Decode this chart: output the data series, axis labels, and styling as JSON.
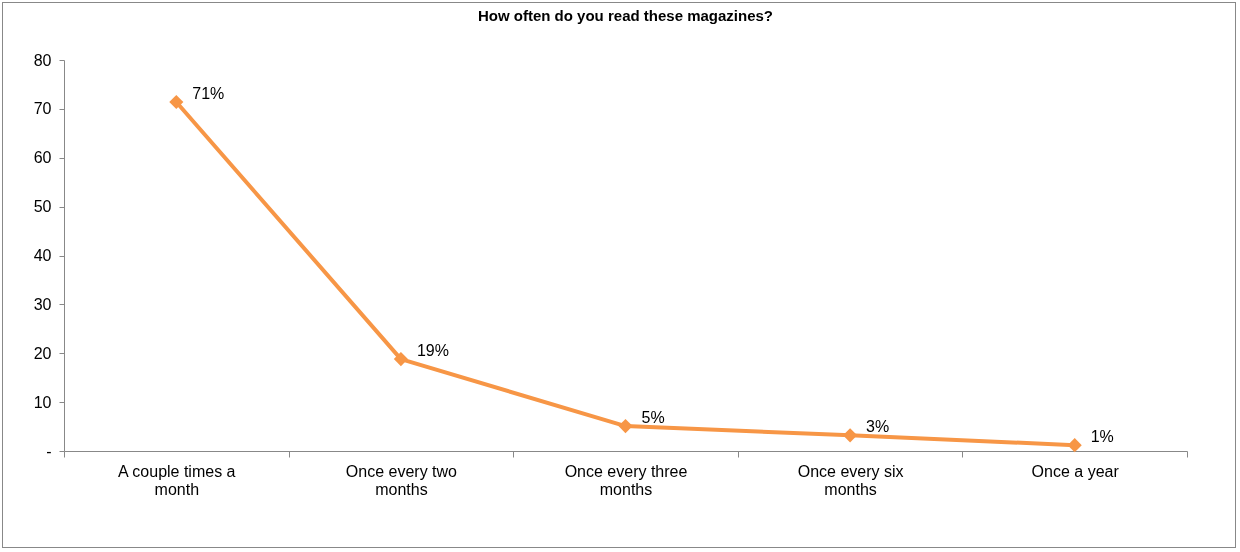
{
  "chart_data": {
    "type": "line",
    "title": "How often do you read these magazines?",
    "categories": [
      "A couple times a month",
      "Once every two months",
      "Once every three months",
      "Once every six months",
      "Once a year"
    ],
    "series": [
      {
        "color": "#f79646",
        "values": [
          71.4,
          18.8,
          5.1,
          3.2,
          1.2
        ],
        "value_labels": [
          "71%",
          "19%",
          "5%",
          "3%",
          "1%"
        ]
      }
    ],
    "ylim": [
      0,
      80
    ],
    "yticks": [
      {
        "value": 0,
        "label": "-"
      },
      10,
      20,
      30,
      40,
      50,
      60,
      70,
      80
    ],
    "grid": false,
    "legend": false,
    "marker": "diamond",
    "line_style": "solid"
  }
}
